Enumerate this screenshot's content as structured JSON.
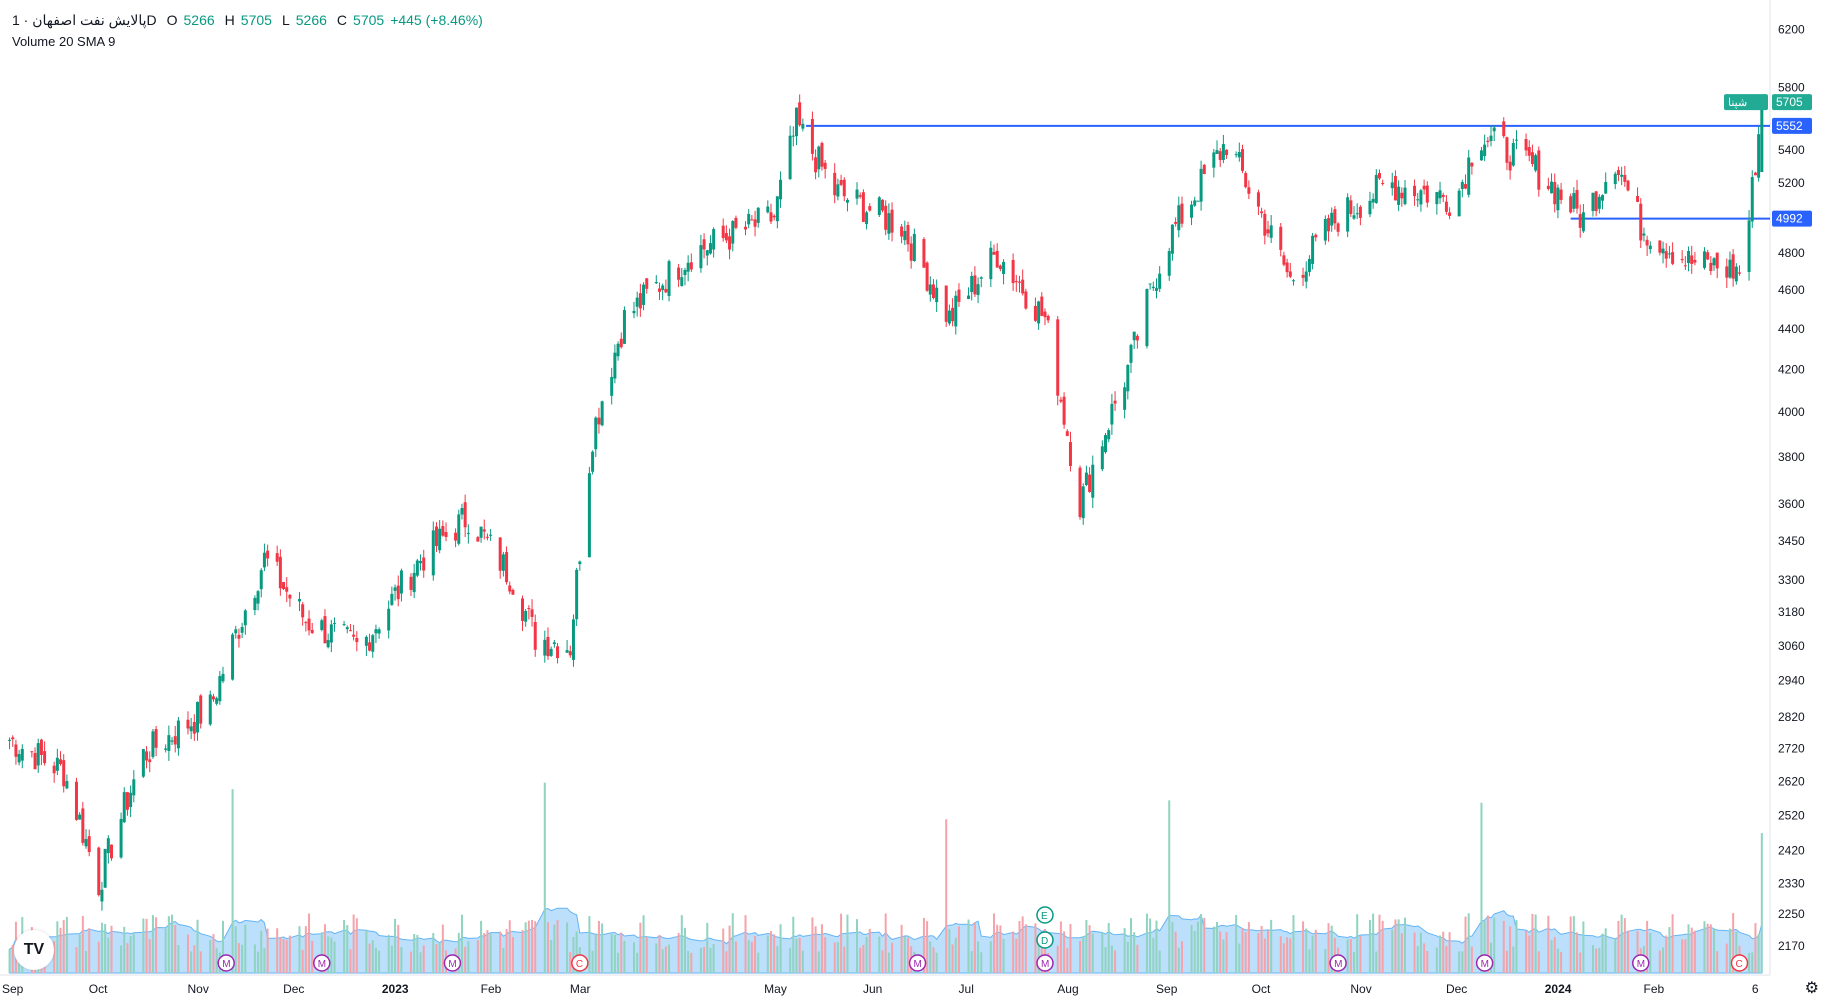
{
  "legend": {
    "symbol": "پالایش نفت اصفهان · 1D",
    "open_label": "O",
    "open": "5266",
    "high_label": "H",
    "high": "5705",
    "low_label": "L",
    "low": "5266",
    "close_label": "C",
    "close": "5705",
    "change": "+445 (+8.46%)",
    "volume_indicator": "Volume 20 SMA 9"
  },
  "colors": {
    "up": "#089981",
    "down": "#f23645",
    "vol_up": "#8fd3c0",
    "vol_down": "#f5a3aa",
    "vol_sma_fill": "#90caf9",
    "hline": "#2962ff",
    "price_tag": "#22ab94"
  },
  "chart_data": {
    "type": "candlestick",
    "scale": "log",
    "y_ticks": [
      2170,
      2250,
      2330,
      2420,
      2520,
      2620,
      2720,
      2820,
      2940,
      3060,
      3180,
      3300,
      3450,
      3600,
      3800,
      4000,
      4200,
      4400,
      4600,
      4800,
      5000,
      5200,
      5400,
      5800,
      6200
    ],
    "x_ticks": [
      "Sep",
      "Oct",
      "Nov",
      "Dec",
      "2023",
      "Feb",
      "Mar",
      "May",
      "Jun",
      "Jul",
      "Aug",
      "Sep",
      "Oct",
      "Nov",
      "Dec",
      "2024",
      "Feb",
      "6"
    ],
    "horizontal_lines": [
      {
        "price": 5552,
        "label": "5552"
      },
      {
        "price": 4992,
        "label": "4992"
      }
    ],
    "last_price": {
      "value": 5705,
      "label": "5705",
      "tag": "شپنا"
    },
    "event_markers": [
      "M",
      "M",
      "M",
      "C",
      "M",
      "M",
      "M",
      "M",
      "M",
      "C"
    ],
    "earnings_markers": [
      "E",
      "D"
    ],
    "price_keypoints": [
      {
        "date": "2022-09-01",
        "close": 2760
      },
      {
        "date": "2022-09-20",
        "close": 2650
      },
      {
        "date": "2022-10-01",
        "close": 2330
      },
      {
        "date": "2022-10-15",
        "close": 2700
      },
      {
        "date": "2022-11-05",
        "close": 2850
      },
      {
        "date": "2022-11-22",
        "close": 3380
      },
      {
        "date": "2022-12-05",
        "close": 3150
      },
      {
        "date": "2022-12-22",
        "close": 3050
      },
      {
        "date": "2023-01-10",
        "close": 3380
      },
      {
        "date": "2023-01-25",
        "close": 3550
      },
      {
        "date": "2023-02-08",
        "close": 3300
      },
      {
        "date": "2023-02-15",
        "close": 3090
      },
      {
        "date": "2023-02-26",
        "close": 3060
      },
      {
        "date": "2023-03-05",
        "close": 3900
      },
      {
        "date": "2023-03-15",
        "close": 4450
      },
      {
        "date": "2023-04-05",
        "close": 4800
      },
      {
        "date": "2023-05-01",
        "close": 5000
      },
      {
        "date": "2023-05-08",
        "close": 5560
      },
      {
        "date": "2023-05-20",
        "close": 5150
      },
      {
        "date": "2023-06-10",
        "close": 4950
      },
      {
        "date": "2023-06-25",
        "close": 4450
      },
      {
        "date": "2023-07-10",
        "close": 4800
      },
      {
        "date": "2023-07-25",
        "close": 4450
      },
      {
        "date": "2023-08-05",
        "close": 3600
      },
      {
        "date": "2023-08-20",
        "close": 4200
      },
      {
        "date": "2023-09-01",
        "close": 4850
      },
      {
        "date": "2023-09-20",
        "close": 5450
      },
      {
        "date": "2023-10-10",
        "close": 4650
      },
      {
        "date": "2023-10-25",
        "close": 5000
      },
      {
        "date": "2023-11-10",
        "close": 5200
      },
      {
        "date": "2023-12-01",
        "close": 5100
      },
      {
        "date": "2023-12-08",
        "close": 5500
      },
      {
        "date": "2023-12-25",
        "close": 5300
      },
      {
        "date": "2024-01-10",
        "close": 4992
      },
      {
        "date": "2024-01-20",
        "close": 5350
      },
      {
        "date": "2024-01-28",
        "close": 4950
      },
      {
        "date": "2024-02-12",
        "close": 4750
      },
      {
        "date": "2024-02-28",
        "close": 4700
      },
      {
        "date": "2024-03-02",
        "close": 4990
      },
      {
        "date": "2024-03-05",
        "close": 5500
      },
      {
        "date": "2024-03-06",
        "close": 5705
      }
    ]
  }
}
